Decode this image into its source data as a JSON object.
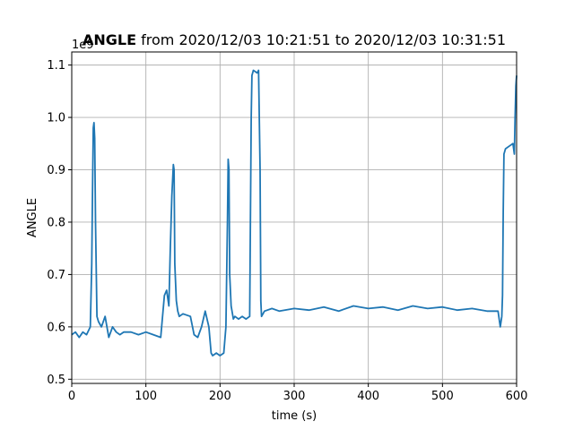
{
  "chart_data": {
    "type": "line",
    "title_bold": "ANGLE",
    "title_rest": " from 2020/12/03 10:21:51 to 2020/12/03 10:31:51",
    "xlabel": "time (s)",
    "ylabel": "ANGLE",
    "offset_label": "1e9",
    "xlim": [
      0,
      600
    ],
    "ylim": [
      0.492,
      1.125
    ],
    "xticks": [
      0,
      100,
      200,
      300,
      400,
      500,
      600
    ],
    "yticks": [
      0.5,
      0.6,
      0.7,
      0.8,
      0.9,
      1.0,
      1.1
    ],
    "ytick_labels": [
      "0.5",
      "0.6",
      "0.7",
      "0.8",
      "0.9",
      "1.0",
      "1.1"
    ],
    "grid": true,
    "series": [
      {
        "color": "#1f77b4",
        "x": [
          0,
          5,
          10,
          15,
          20,
          25,
          27,
          28,
          29,
          30,
          31,
          32,
          34,
          36,
          40,
          45,
          50,
          55,
          60,
          65,
          70,
          80,
          90,
          100,
          110,
          120,
          125,
          128,
          131,
          133,
          135,
          137,
          138,
          139,
          141,
          143,
          145,
          150,
          160,
          165,
          170,
          175,
          180,
          185,
          188,
          190,
          195,
          200,
          205,
          208,
          210,
          211,
          212,
          213,
          215,
          218,
          220,
          225,
          230,
          235,
          240,
          241,
          242,
          243,
          245,
          250,
          252,
          254,
          255,
          256,
          260,
          270,
          280,
          300,
          320,
          340,
          360,
          380,
          400,
          420,
          440,
          460,
          480,
          500,
          520,
          540,
          560,
          575,
          578,
          580,
          581,
          582,
          583,
          585,
          590,
          595,
          597,
          598,
          599,
          600
        ],
        "y": [
          0.585,
          0.59,
          0.58,
          0.59,
          0.585,
          0.6,
          0.72,
          0.85,
          0.98,
          0.99,
          0.96,
          0.8,
          0.62,
          0.61,
          0.6,
          0.62,
          0.58,
          0.6,
          0.59,
          0.585,
          0.59,
          0.59,
          0.585,
          0.59,
          0.585,
          0.58,
          0.66,
          0.67,
          0.64,
          0.75,
          0.85,
          0.91,
          0.9,
          0.72,
          0.65,
          0.63,
          0.62,
          0.625,
          0.62,
          0.585,
          0.58,
          0.6,
          0.63,
          0.6,
          0.55,
          0.545,
          0.55,
          0.545,
          0.55,
          0.6,
          0.8,
          0.92,
          0.9,
          0.7,
          0.64,
          0.615,
          0.62,
          0.615,
          0.62,
          0.615,
          0.62,
          0.8,
          1.0,
          1.08,
          1.09,
          1.085,
          1.09,
          0.9,
          0.65,
          0.62,
          0.63,
          0.635,
          0.63,
          0.635,
          0.632,
          0.638,
          0.63,
          0.64,
          0.635,
          0.638,
          0.632,
          0.64,
          0.635,
          0.638,
          0.632,
          0.635,
          0.63,
          0.63,
          0.6,
          0.62,
          0.66,
          0.82,
          0.93,
          0.94,
          0.945,
          0.95,
          0.93,
          1.0,
          1.06,
          1.08
        ]
      }
    ]
  }
}
